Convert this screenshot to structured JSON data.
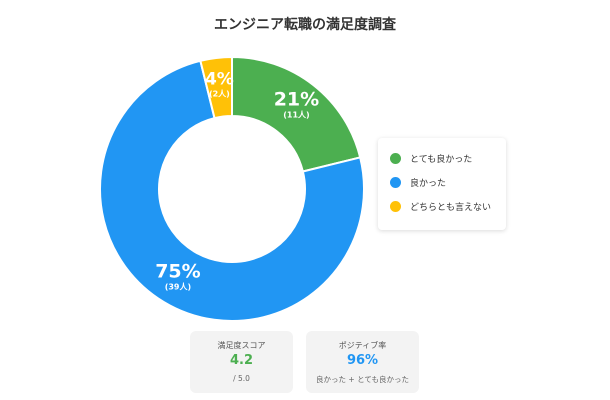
{
  "chart_data": {
    "type": "pie",
    "title": "エンジニア転職の満足度調査",
    "categories": [
      "とても良かった",
      "良かった",
      "どちらとも言えない"
    ],
    "values": [
      11,
      39,
      2
    ],
    "percent_labels": [
      "21%",
      "75%",
      "4%"
    ],
    "count_labels": [
      "(11人)",
      "(39人)",
      "(2人)"
    ],
    "colors": [
      "#4caf50",
      "#2196f3",
      "#ffc107"
    ],
    "legend_position": "right",
    "donut": true
  },
  "legend": {
    "items": [
      {
        "label": "とても良かった",
        "color": "#4caf50"
      },
      {
        "label": "良かった",
        "color": "#2196f3"
      },
      {
        "label": "どちらとも言えない",
        "color": "#ffc107"
      }
    ]
  },
  "cards": {
    "score": {
      "label": "満足度スコア",
      "value": "4.2",
      "sub": "/ 5.0",
      "color": "#4caf50"
    },
    "positive": {
      "label": "ポジティブ率",
      "value": "96%",
      "sub": "良かった + とても良かった",
      "color": "#2196f3"
    }
  }
}
